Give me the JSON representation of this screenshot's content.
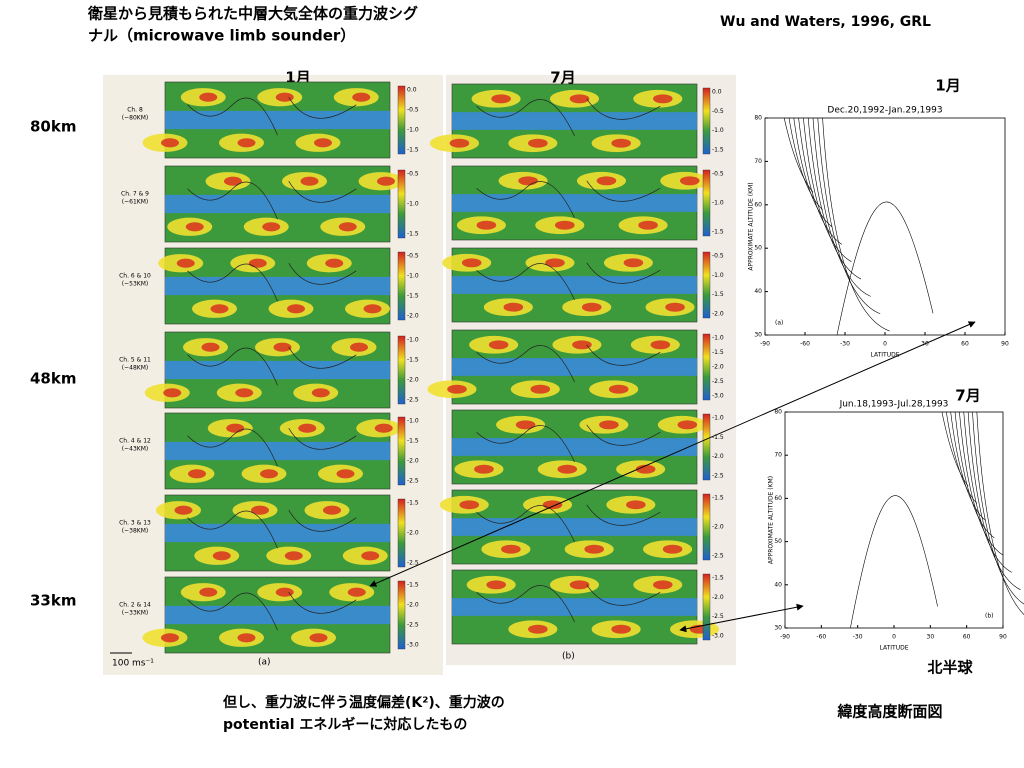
{
  "header": {
    "title_lines": [
      "衛星から見積もられた中層大気全体の重力波シグ",
      "ナル（microwave limb sounder）"
    ],
    "citation": "Wu and Waters, 1996, GRL"
  },
  "altitude_labels": [
    "80km",
    "48km",
    "33km"
  ],
  "january_maps": {
    "month": "1月",
    "tag": "(a)",
    "scale_arrow": "100 ms⁻¹",
    "panels": [
      {
        "channel": [
          "Ch. 8",
          "(~80KM)"
        ],
        "scale": [
          "0.0",
          "-0.5",
          "-1.0",
          "-1.5"
        ]
      },
      {
        "channel": [
          "Ch. 7 & 9",
          "(~61KM)"
        ],
        "scale": [
          "-0.5",
          "-1.0",
          "-1.5"
        ]
      },
      {
        "channel": [
          "Ch. 6 & 10",
          "(~53KM)"
        ],
        "scale": [
          "-0.5",
          "-1.0",
          "-1.5",
          "-2.0"
        ]
      },
      {
        "channel": [
          "Ch. 5 & 11",
          "(~48KM)"
        ],
        "scale": [
          "-1.0",
          "-1.5",
          "-2.0",
          "-2.5"
        ]
      },
      {
        "channel": [
          "Ch. 4 & 12",
          "(~43KM)"
        ],
        "scale": [
          "-1.0",
          "-1.5",
          "-2.0",
          "-2.5"
        ]
      },
      {
        "channel": [
          "Ch. 3 & 13",
          "(~38KM)"
        ],
        "scale": [
          "-1.5",
          "-2.0",
          "-2.5"
        ]
      },
      {
        "channel": [
          "Ch. 2 & 14",
          "(~33KM)"
        ],
        "scale": [
          "-1.5",
          "-2.0",
          "-2.5",
          "-3.0"
        ]
      }
    ]
  },
  "july_maps": {
    "month": "7月",
    "tag": "(b)",
    "panels": [
      {
        "scale": [
          "0.0",
          "-0.5",
          "-1.0",
          "-1.5"
        ]
      },
      {
        "scale": [
          "-0.5",
          "-1.0",
          "-1.5"
        ]
      },
      {
        "scale": [
          "-0.5",
          "-1.0",
          "-1.5",
          "-2.0"
        ]
      },
      {
        "scale": [
          "-1.0",
          "-1.5",
          "-2.0",
          "-2.5",
          "-3.0"
        ]
      },
      {
        "scale": [
          "-1.0",
          "-1.5",
          "-2.0",
          "-2.5"
        ]
      },
      {
        "scale": [
          "-1.5",
          "-2.0",
          "-2.5"
        ]
      },
      {
        "scale": [
          "-1.5",
          "-2.0",
          "-2.5",
          "-3.0"
        ]
      }
    ]
  },
  "cross_sections": [
    {
      "month": "1月",
      "period": "Dec.20,1992-Jan.29,1993",
      "y_label": "APPROXIMATE ALTITUDE (KM)",
      "x_label": "LATITUDE",
      "xticks": [
        -90,
        -60,
        -30,
        0,
        30,
        60,
        90
      ],
      "yticks": [
        30,
        40,
        50,
        60,
        70,
        80
      ],
      "tag": "(a)"
    },
    {
      "month": "7月",
      "period": "Jun.18,1993-Jul.28,1993",
      "y_label": "APPROXIMATE ALTITUDE (KM)",
      "x_label": "LATITUDE",
      "xticks": [
        -90,
        -60,
        -30,
        0,
        30,
        60,
        90
      ],
      "yticks": [
        30,
        40,
        50,
        60,
        70,
        80
      ],
      "tag": "(b)"
    }
  ],
  "hemisphere": "北半球",
  "cross_section_caption": "緯度高度断面図",
  "caption_lines": [
    "但し、重力波に伴う温度偏差(K²)、重力波の",
    "potential エネルギーに対応したもの"
  ]
}
